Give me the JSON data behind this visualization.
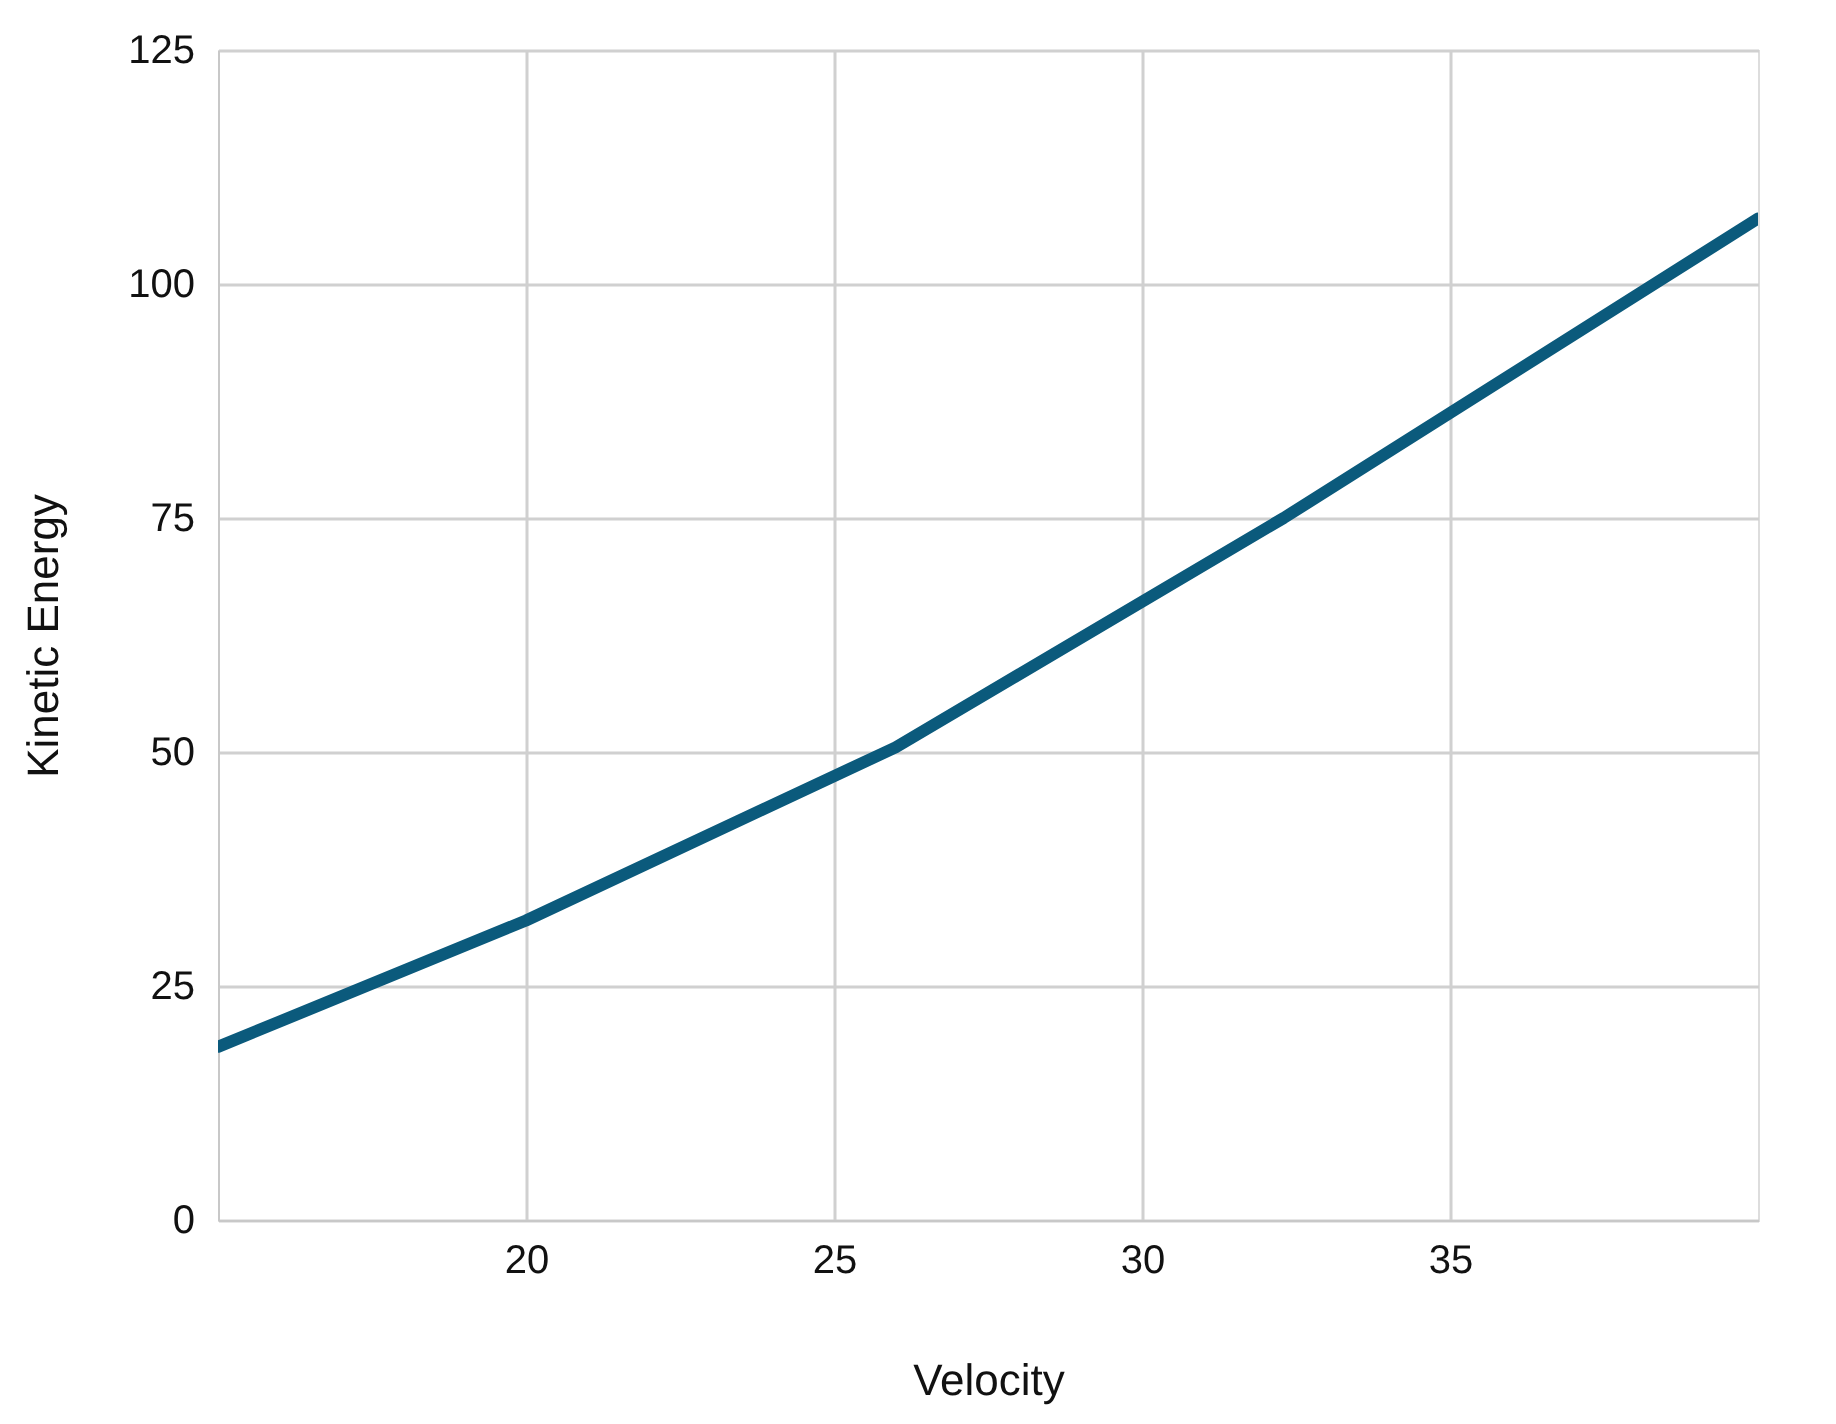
{
  "chart_data": {
    "type": "line",
    "xlabel": "Velocity",
    "ylabel": "Kinetic Energy",
    "x": [
      15,
      20,
      26,
      32.3,
      40
    ],
    "series": [
      {
        "color": "#0b5a7c",
        "values": [
          18.5,
          32,
          50.5,
          75,
          107
        ]
      }
    ],
    "xlim": [
      15,
      40
    ],
    "xticks": [
      20,
      25,
      30,
      35
    ],
    "ylim": [
      0,
      125
    ],
    "yticks": [
      0,
      25,
      50,
      75,
      100,
      125
    ],
    "grid": true,
    "marker": "none",
    "line_style": "solid"
  }
}
